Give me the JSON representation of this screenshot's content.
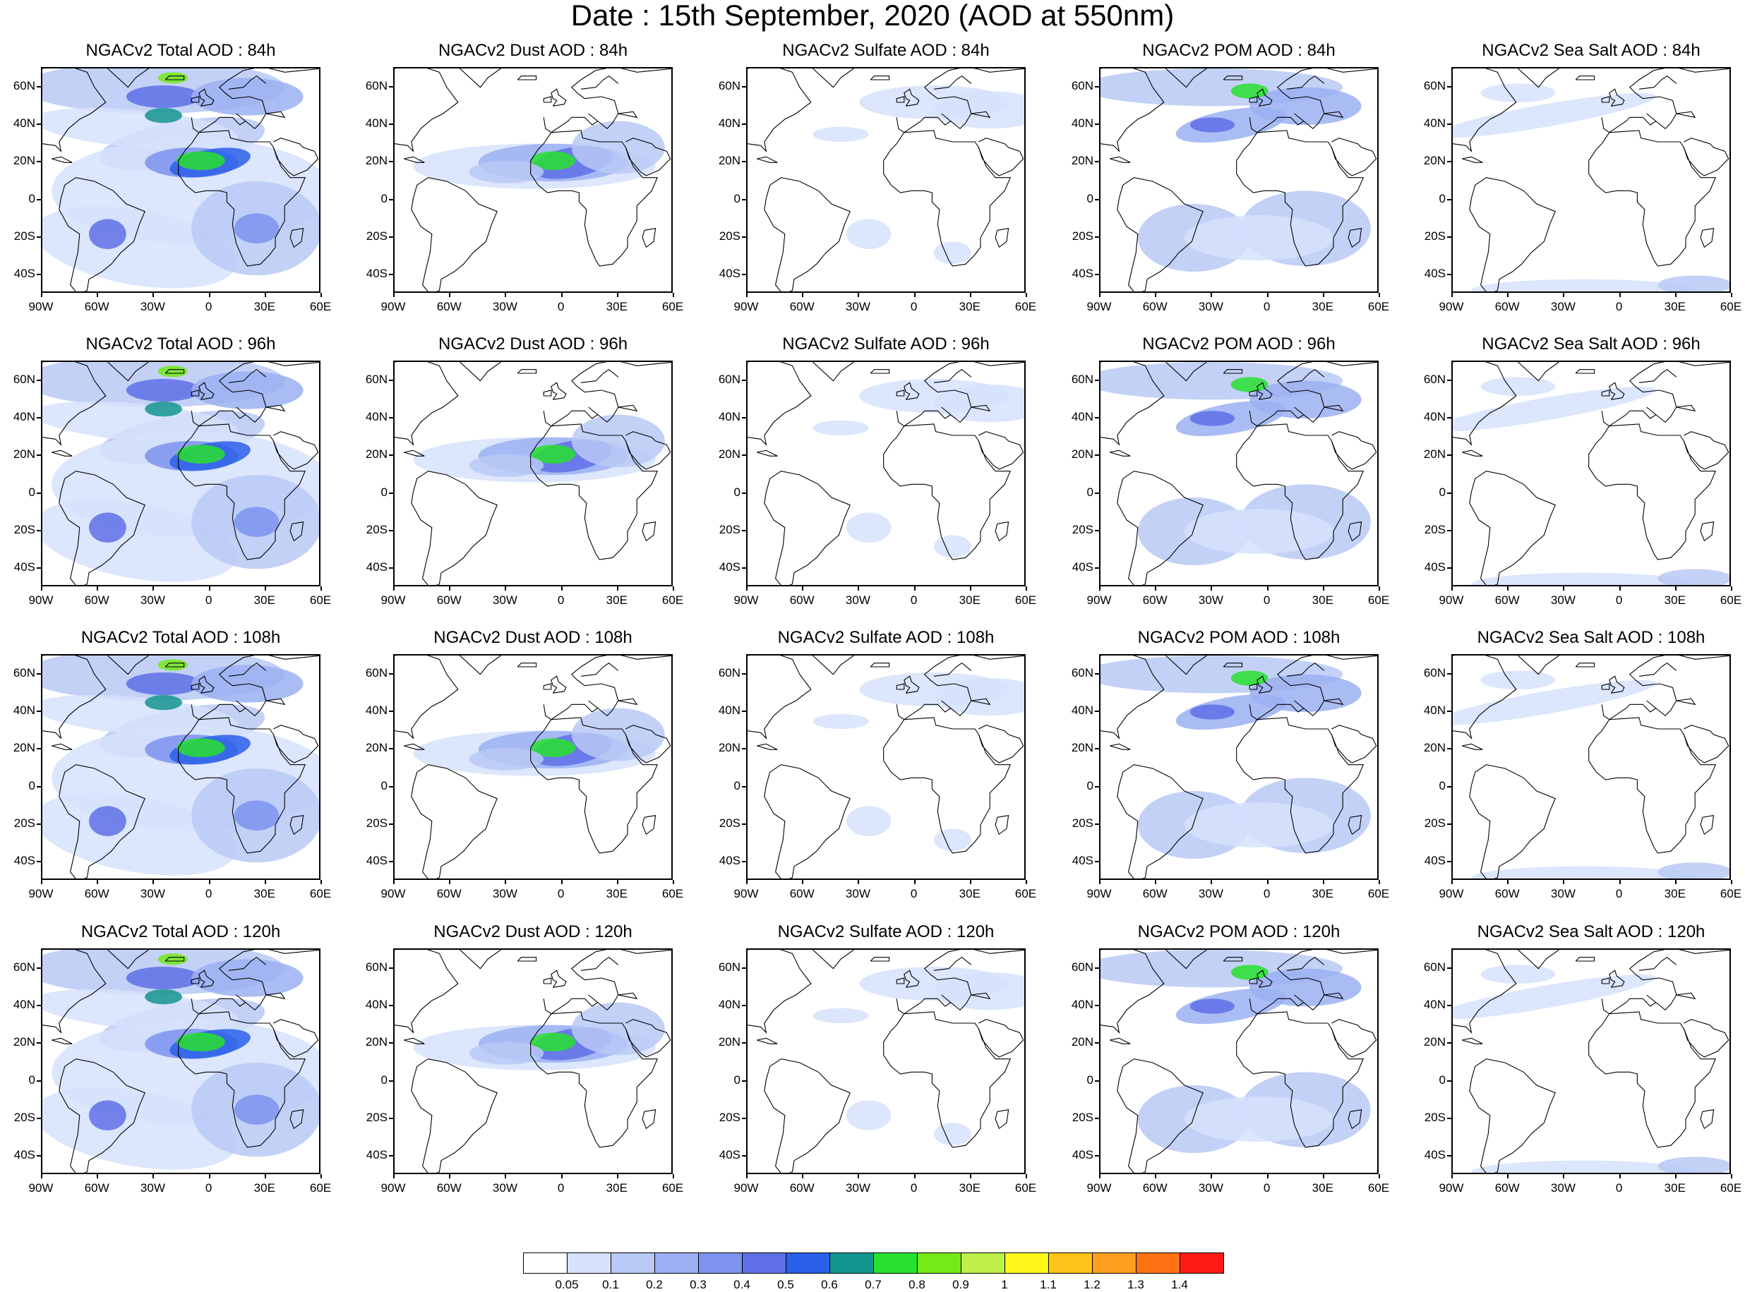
{
  "title": "Date : 15th September, 2020 (AOD at 550nm)",
  "axes": {
    "lon_labels": [
      "90W",
      "60W",
      "30W",
      "0",
      "30E",
      "60E"
    ],
    "lon_values": [
      -90,
      -60,
      -30,
      0,
      30,
      60
    ],
    "lat_labels": [
      "60N",
      "40N",
      "20N",
      "0",
      "20S",
      "40S"
    ],
    "lat_values": [
      60,
      40,
      20,
      0,
      -20,
      -40
    ],
    "lon_range": [
      -90,
      60
    ],
    "lat_range": [
      -50,
      70
    ]
  },
  "colorbar": {
    "labels": [
      "0.05",
      "0.1",
      "0.2",
      "0.3",
      "0.4",
      "0.5",
      "0.6",
      "0.7",
      "0.8",
      "0.9",
      "1",
      "1.1",
      "1.2",
      "1.3",
      "1.4"
    ],
    "colors": [
      "#ffffff",
      "#d6e2fb",
      "#b9c9f6",
      "#9bb0f2",
      "#7d93ee",
      "#5f70e6",
      "#2a5fea",
      "#14948f",
      "#28e12e",
      "#74ea18",
      "#bff04a",
      "#fff81a",
      "#ffc417",
      "#ffa01f",
      "#ff7213",
      "#ff1b14"
    ]
  },
  "rows": [
    {
      "lead": "84h",
      "panels": [
        {
          "title": "NGACv2 Total AOD : 84h",
          "type": "total",
          "intensity": 0.8
        },
        {
          "title": "NGACv2 Dust AOD : 84h",
          "type": "dust",
          "intensity": 0.7
        },
        {
          "title": "NGACv2 Sulfate AOD : 84h",
          "type": "sulfate",
          "intensity": 0.3
        },
        {
          "title": "NGACv2 POM AOD : 84h",
          "type": "pom",
          "intensity": 0.7
        },
        {
          "title": "NGACv2 Sea Salt AOD : 84h",
          "type": "seasalt",
          "intensity": 0.3
        }
      ]
    },
    {
      "lead": "96h",
      "panels": [
        {
          "title": "NGACv2 Total AOD : 96h",
          "type": "total",
          "intensity": 0.85
        },
        {
          "title": "NGACv2 Dust AOD : 96h",
          "type": "dust",
          "intensity": 0.8
        },
        {
          "title": "NGACv2 Sulfate AOD : 96h",
          "type": "sulfate",
          "intensity": 0.3
        },
        {
          "title": "NGACv2 POM AOD : 96h",
          "type": "pom",
          "intensity": 0.7
        },
        {
          "title": "NGACv2 Sea Salt AOD : 96h",
          "type": "seasalt",
          "intensity": 0.35
        }
      ]
    },
    {
      "lead": "108h",
      "panels": [
        {
          "title": "NGACv2 Total AOD : 108h",
          "type": "total",
          "intensity": 0.9
        },
        {
          "title": "NGACv2 Dust AOD : 108h",
          "type": "dust",
          "intensity": 0.85
        },
        {
          "title": "NGACv2 Sulfate AOD : 108h",
          "type": "sulfate",
          "intensity": 0.3
        },
        {
          "title": "NGACv2 POM AOD : 108h",
          "type": "pom",
          "intensity": 0.75
        },
        {
          "title": "NGACv2 Sea Salt AOD : 108h",
          "type": "seasalt",
          "intensity": 0.35
        }
      ]
    },
    {
      "lead": "120h",
      "panels": [
        {
          "title": "NGACv2 Total AOD : 120h",
          "type": "total",
          "intensity": 0.9
        },
        {
          "title": "NGACv2 Dust AOD : 120h",
          "type": "dust",
          "intensity": 0.85
        },
        {
          "title": "NGACv2 Sulfate AOD : 120h",
          "type": "sulfate",
          "intensity": 0.3
        },
        {
          "title": "NGACv2 POM AOD : 120h",
          "type": "pom",
          "intensity": 0.8
        },
        {
          "title": "NGACv2 Sea Salt  AOD : 120h",
          "type": "seasalt",
          "intensity": 0.35
        }
      ]
    }
  ]
}
